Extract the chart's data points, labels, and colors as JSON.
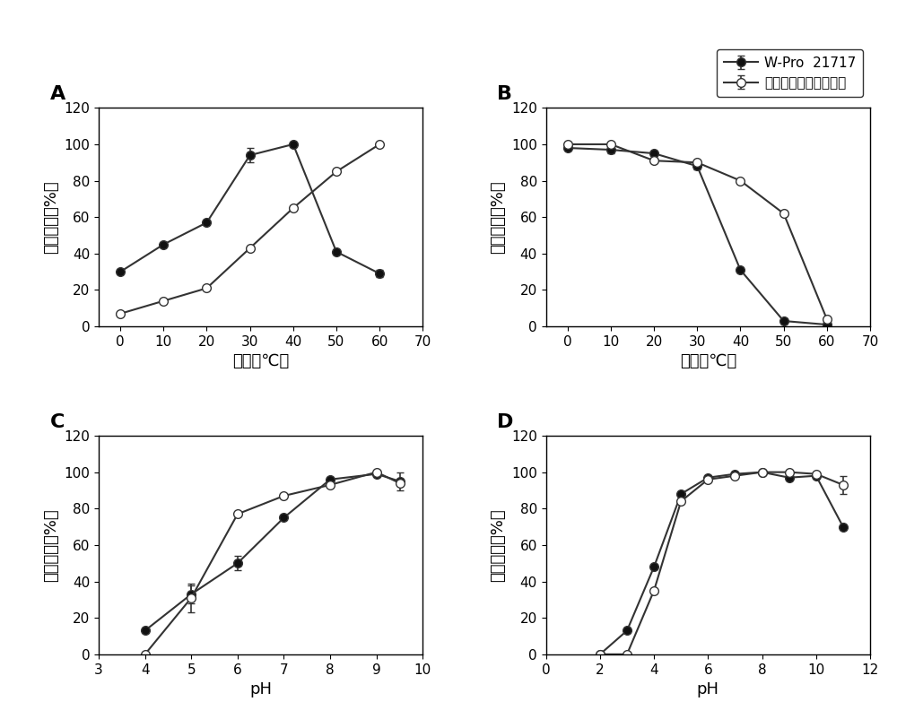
{
  "legend_labels": [
    "W-Pro  21717",
    "枯草杆菌蛋白酥嘉士伯"
  ],
  "panel_labels": [
    "A",
    "B",
    "C",
    "D"
  ],
  "A": {
    "xlabel": "温度（℃）",
    "ylabel": "相对活性（%）",
    "xlim": [
      -5,
      70
    ],
    "ylim": [
      0,
      120
    ],
    "xticks": [
      0,
      10,
      20,
      30,
      40,
      50,
      60,
      70
    ],
    "yticks": [
      0,
      20,
      40,
      60,
      80,
      100,
      120
    ],
    "filled_x": [
      0,
      10,
      20,
      30,
      40,
      50,
      60
    ],
    "filled_y": [
      30,
      45,
      57,
      94,
      100,
      41,
      29
    ],
    "filled_yerr": [
      0,
      0,
      0,
      4,
      0,
      0,
      2
    ],
    "open_x": [
      0,
      10,
      20,
      30,
      40,
      50,
      60
    ],
    "open_y": [
      7,
      14,
      21,
      43,
      65,
      85,
      100
    ],
    "open_yerr": [
      0,
      0,
      0,
      0,
      0,
      0,
      0
    ]
  },
  "B": {
    "xlabel": "温度（℃）",
    "ylabel": "残留活性（%）",
    "xlim": [
      -5,
      70
    ],
    "ylim": [
      0,
      120
    ],
    "xticks": [
      0,
      10,
      20,
      30,
      40,
      50,
      60,
      70
    ],
    "yticks": [
      0,
      20,
      40,
      60,
      80,
      100,
      120
    ],
    "filled_x": [
      0,
      10,
      20,
      30,
      40,
      50,
      60
    ],
    "filled_y": [
      98,
      97,
      95,
      88,
      31,
      3,
      1
    ],
    "filled_yerr": [
      0,
      2,
      0,
      2,
      0,
      0,
      0
    ],
    "open_x": [
      0,
      10,
      20,
      30,
      40,
      50,
      60
    ],
    "open_y": [
      100,
      100,
      91,
      90,
      80,
      62,
      4
    ],
    "open_yerr": [
      0,
      0,
      0,
      0,
      0,
      0,
      0
    ]
  },
  "C": {
    "xlabel": "pH",
    "ylabel": "相对活性（%）",
    "xlim": [
      3,
      10
    ],
    "ylim": [
      0,
      120
    ],
    "xticks": [
      3,
      4,
      5,
      6,
      7,
      8,
      9,
      10
    ],
    "yticks": [
      0,
      20,
      40,
      60,
      80,
      100,
      120
    ],
    "filled_x": [
      4,
      5,
      6,
      7,
      8,
      9,
      9.5
    ],
    "filled_y": [
      13,
      33,
      50,
      75,
      96,
      99,
      95
    ],
    "filled_yerr": [
      0,
      5,
      4,
      0,
      0,
      0,
      5
    ],
    "open_x": [
      4,
      5,
      6,
      7,
      8,
      9,
      9.5
    ],
    "open_y": [
      0,
      31,
      77,
      87,
      93,
      100,
      94
    ],
    "open_yerr": [
      0,
      8,
      0,
      0,
      0,
      0,
      0
    ]
  },
  "D": {
    "xlabel": "pH",
    "ylabel": "残留活性（%）",
    "xlim": [
      0,
      12
    ],
    "ylim": [
      0,
      120
    ],
    "xticks": [
      0,
      2,
      4,
      6,
      8,
      10,
      12
    ],
    "yticks": [
      0,
      20,
      40,
      60,
      80,
      100,
      120
    ],
    "filled_x": [
      2,
      3,
      4,
      5,
      6,
      7,
      8,
      9,
      10,
      11
    ],
    "filled_y": [
      0,
      13,
      48,
      88,
      97,
      99,
      100,
      97,
      98,
      70
    ],
    "filled_yerr": [
      0,
      0,
      0,
      0,
      0,
      0,
      0,
      0,
      0,
      0
    ],
    "open_x": [
      2,
      3,
      4,
      5,
      6,
      7,
      8,
      9,
      10,
      11
    ],
    "open_y": [
      0,
      0,
      35,
      84,
      96,
      98,
      100,
      100,
      99,
      93
    ],
    "open_yerr": [
      0,
      0,
      0,
      0,
      0,
      0,
      0,
      0,
      0,
      5
    ]
  },
  "line_color": "#333333",
  "filled_color": "#111111",
  "open_facecolor": "#ffffff",
  "markersize": 7,
  "linewidth": 1.5,
  "capsize": 3,
  "elinewidth": 1.2,
  "background_color": "#ffffff",
  "panel_label_fontsize": 16,
  "axis_label_fontsize": 13,
  "tick_fontsize": 11,
  "legend_fontsize": 11
}
